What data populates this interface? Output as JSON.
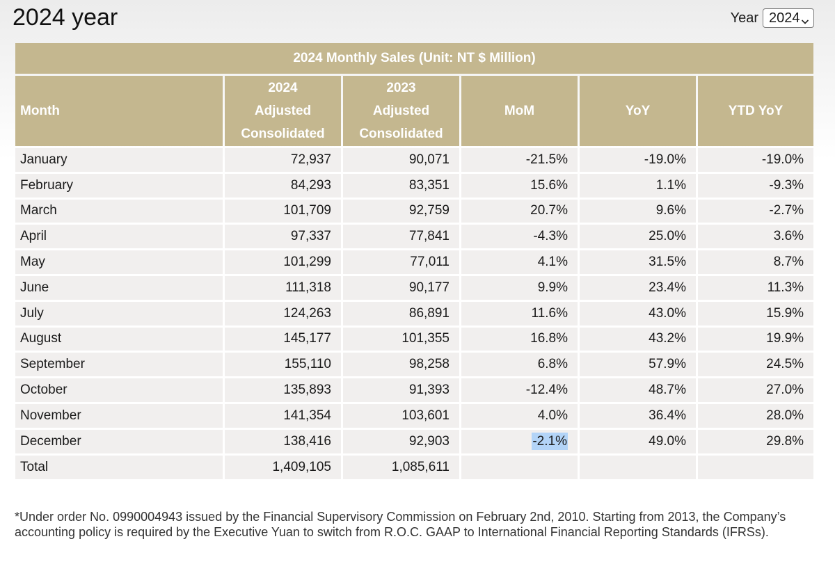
{
  "page": {
    "title": "2024 year"
  },
  "year_picker": {
    "label": "Year",
    "selected": "2024"
  },
  "table": {
    "caption": "2024 Monthly Sales (Unit: NT $ Million)",
    "headers": {
      "month": "Month",
      "col2024": [
        "2024",
        "Adjusted",
        "Consolidated"
      ],
      "col2023": [
        "2023",
        "Adjusted",
        "Consolidated"
      ],
      "mom": "MoM",
      "yoy": "YoY",
      "ytd": "YTD YoY"
    },
    "rows": [
      {
        "month": "January",
        "v2024": "72,937",
        "v2023": "90,071",
        "mom": "-21.5%",
        "yoy": "-19.0%",
        "ytd": "-19.0%"
      },
      {
        "month": "February",
        "v2024": "84,293",
        "v2023": "83,351",
        "mom": "15.6%",
        "yoy": "1.1%",
        "ytd": "-9.3%"
      },
      {
        "month": "March",
        "v2024": "101,709",
        "v2023": "92,759",
        "mom": "20.7%",
        "yoy": "9.6%",
        "ytd": "-2.7%"
      },
      {
        "month": "April",
        "v2024": "97,337",
        "v2023": "77,841",
        "mom": "-4.3%",
        "yoy": "25.0%",
        "ytd": "3.6%"
      },
      {
        "month": "May",
        "v2024": "101,299",
        "v2023": "77,011",
        "mom": "4.1%",
        "yoy": "31.5%",
        "ytd": "8.7%"
      },
      {
        "month": "June",
        "v2024": "111,318",
        "v2023": "90,177",
        "mom": "9.9%",
        "yoy": "23.4%",
        "ytd": "11.3%"
      },
      {
        "month": "July",
        "v2024": "124,263",
        "v2023": "86,891",
        "mom": "11.6%",
        "yoy": "43.0%",
        "ytd": "15.9%"
      },
      {
        "month": "August",
        "v2024": "145,177",
        "v2023": "101,355",
        "mom": "16.8%",
        "yoy": "43.2%",
        "ytd": "19.9%"
      },
      {
        "month": "September",
        "v2024": "155,110",
        "v2023": "98,258",
        "mom": "6.8%",
        "yoy": "57.9%",
        "ytd": "24.5%"
      },
      {
        "month": "October",
        "v2024": "135,893",
        "v2023": "91,393",
        "mom": "-12.4%",
        "yoy": "48.7%",
        "ytd": "27.0%"
      },
      {
        "month": "November",
        "v2024": "141,354",
        "v2023": "103,601",
        "mom": "4.0%",
        "yoy": "36.4%",
        "ytd": "28.0%"
      },
      {
        "month": "December",
        "v2024": "138,416",
        "v2023": "92,903",
        "mom": "-2.1%",
        "yoy": "49.0%",
        "ytd": "29.8%"
      }
    ],
    "total": {
      "month": "Total",
      "v2024": "1,409,105",
      "v2023": "1,085,611",
      "mom": "",
      "yoy": "",
      "ytd": ""
    }
  },
  "footnote": "*Under order No. 0990004943 issued by the Financial Supervisory Commission on February 2nd, 2010. Starting from 2013, the Company’s accounting policy is required by the Executive Yuan to switch from R.O.C. GAAP to International Financial Reporting Standards (IFRSs).",
  "colors": {
    "header_bg": "#c4b78f",
    "cell_bg": "#f1efee",
    "selection_highlight": "#b3d4f7"
  },
  "icons": {
    "year_select": "chevron-down-icon"
  }
}
